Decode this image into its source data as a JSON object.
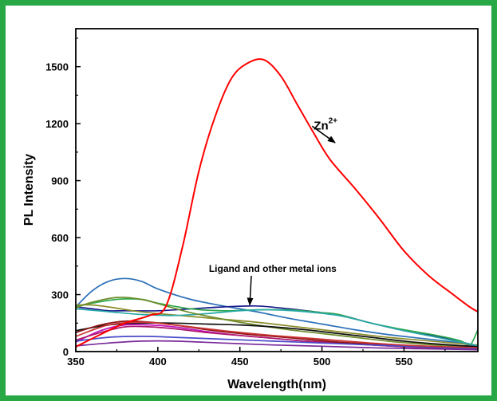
{
  "chart_data": {
    "type": "line",
    "title": "",
    "xlabel": "Wavelength(nm)",
    "ylabel": "PL Intensity",
    "xlim": [
      350,
      595
    ],
    "ylim": [
      0,
      1700
    ],
    "xticks": [
      350,
      400,
      450,
      500,
      550
    ],
    "yticks": [
      0,
      300,
      600,
      900,
      1200,
      1500
    ],
    "grid": false,
    "annotations": [
      {
        "text": "Zn",
        "sup": "2+",
        "target_series": 0,
        "label_at": [
          495,
          1170
        ],
        "arrow_to": [
          508,
          1100
        ]
      },
      {
        "text": "Ligand and other metal ions",
        "label_at": [
          470,
          420
        ],
        "arrow_to": [
          456,
          245
        ]
      }
    ],
    "series": [
      {
        "color": "#ff0000",
        "x": [
          350,
          365,
          380,
          395,
          405,
          415,
          425,
          435,
          445,
          455,
          465,
          475,
          485,
          495,
          505,
          520,
          535,
          550,
          565,
          580,
          590,
          595
        ],
        "y": [
          25,
          90,
          150,
          190,
          240,
          550,
          950,
          1240,
          1440,
          1520,
          1535,
          1450,
          1300,
          1150,
          1010,
          860,
          700,
          530,
          400,
          300,
          235,
          210
        ]
      },
      {
        "color": "#2a6fb8",
        "x": [
          350,
          360,
          370,
          380,
          390,
          400,
          420,
          440,
          460,
          480,
          500,
          520,
          540,
          560,
          580,
          590,
          595
        ],
        "y": [
          235,
          320,
          370,
          385,
          370,
          330,
          275,
          240,
          210,
          175,
          145,
          115,
          90,
          70,
          50,
          35,
          30
        ]
      },
      {
        "color": "#1a1a8c",
        "x": [
          350,
          360,
          370,
          380,
          400,
          420,
          440,
          460,
          480,
          500,
          510,
          530,
          550,
          570,
          590,
          595
        ],
        "y": [
          235,
          225,
          215,
          215,
          215,
          225,
          235,
          240,
          225,
          205,
          195,
          150,
          110,
          80,
          40,
          30
        ]
      },
      {
        "color": "#2ca84a",
        "x": [
          350,
          360,
          375,
          390,
          400,
          420,
          440,
          460,
          480,
          500,
          510,
          530,
          550,
          570,
          585,
          590,
          595
        ],
        "y": [
          240,
          255,
          275,
          275,
          255,
          225,
          215,
          220,
          220,
          205,
          195,
          150,
          115,
          85,
          55,
          30,
          115
        ]
      },
      {
        "color": "#8c8c2a",
        "x": [
          350,
          360,
          370,
          385,
          400,
          420,
          440,
          460,
          480,
          500,
          520,
          540,
          560,
          580,
          595
        ],
        "y": [
          245,
          245,
          235,
          215,
          200,
          185,
          170,
          155,
          135,
          115,
          95,
          75,
          60,
          45,
          35
        ]
      },
      {
        "color": "#2aa8a8",
        "x": [
          350,
          370,
          390,
          410,
          430,
          450,
          470,
          490,
          510,
          530,
          550,
          570,
          590,
          595
        ],
        "y": [
          225,
          210,
          195,
          190,
          200,
          215,
          220,
          210,
          190,
          150,
          110,
          75,
          40,
          30
        ]
      },
      {
        "color": "#6e8c2a",
        "x": [
          350,
          360,
          375,
          390,
          405,
          420,
          440,
          460,
          480,
          500,
          520,
          540,
          560,
          580,
          595
        ],
        "y": [
          230,
          260,
          285,
          275,
          240,
          205,
          170,
          140,
          115,
          95,
          75,
          55,
          40,
          30,
          25
        ]
      },
      {
        "color": "#111111",
        "x": [
          350,
          370,
          390,
          410,
          430,
          450,
          470,
          490,
          510,
          530,
          550,
          570,
          595
        ],
        "y": [
          110,
          140,
          150,
          150,
          145,
          140,
          130,
          115,
          95,
          75,
          55,
          40,
          25
        ]
      },
      {
        "color": "#c016c0",
        "x": [
          350,
          365,
          380,
          395,
          410,
          430,
          450,
          470,
          490,
          510,
          530,
          550,
          570,
          595
        ],
        "y": [
          50,
          110,
          140,
          140,
          130,
          105,
          85,
          70,
          55,
          45,
          35,
          25,
          20,
          15
        ]
      },
      {
        "color": "#b0156a",
        "x": [
          350,
          365,
          380,
          395,
          410,
          430,
          450,
          470,
          490,
          510,
          530,
          550,
          570,
          595
        ],
        "y": [
          60,
          100,
          130,
          130,
          120,
          100,
          85,
          70,
          55,
          45,
          35,
          25,
          20,
          15
        ]
      },
      {
        "color": "#8d1515",
        "x": [
          350,
          365,
          380,
          395,
          410,
          430,
          450,
          470,
          490,
          510,
          530,
          550,
          570,
          595
        ],
        "y": [
          100,
          140,
          160,
          155,
          140,
          115,
          95,
          80,
          65,
          50,
          40,
          30,
          20,
          15
        ]
      },
      {
        "color": "#4a4acc",
        "x": [
          350,
          370,
          390,
          410,
          440,
          470,
          500,
          530,
          560,
          595
        ],
        "y": [
          55,
          75,
          80,
          75,
          65,
          55,
          45,
          35,
          25,
          15
        ]
      },
      {
        "color": "#7a2a9a",
        "x": [
          350,
          370,
          390,
          410,
          440,
          470,
          500,
          530,
          560,
          595
        ],
        "y": [
          30,
          45,
          55,
          55,
          45,
          35,
          28,
          20,
          15,
          10
        ]
      },
      {
        "color": "#cc3333",
        "x": [
          350,
          370,
          390,
          410,
          440,
          470,
          500,
          530,
          560,
          595
        ],
        "y": [
          80,
          140,
          155,
          140,
          110,
          85,
          65,
          45,
          30,
          20
        ]
      }
    ]
  }
}
